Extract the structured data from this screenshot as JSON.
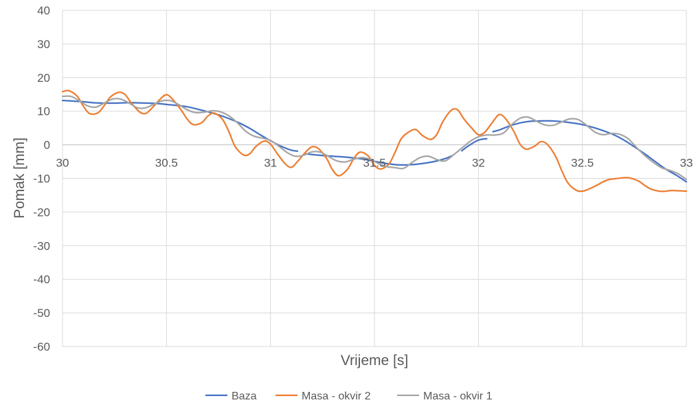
{
  "chart_data": {
    "type": "line",
    "title": "",
    "xlabel": "Vrijeme [s]",
    "ylabel": "Pomak [mm]",
    "xlim": [
      30,
      33
    ],
    "ylim": [
      -60,
      40
    ],
    "x_ticks": [
      30,
      30.5,
      31,
      31.5,
      32,
      32.5,
      33
    ],
    "x_tick_labels": [
      "30",
      "30.5",
      "31",
      "31.5",
      "32",
      "32.5",
      "33"
    ],
    "y_ticks": [
      40,
      30,
      20,
      10,
      0,
      -10,
      -20,
      -30,
      -40,
      -50,
      -60
    ],
    "y_tick_labels": [
      "40",
      "30",
      "20",
      "10",
      "0",
      "-10",
      "-20",
      "-30",
      "-40",
      "-50",
      "-60"
    ],
    "grid": true,
    "legend_position": "bottom",
    "series": [
      {
        "name": "Baza",
        "color": "#4472C4",
        "segments": [
          {
            "x": [
              30.0,
              30.05,
              30.1,
              30.15,
              30.2,
              30.25,
              30.3,
              30.35,
              30.4,
              30.45,
              30.5,
              30.55,
              30.6,
              30.65,
              30.7,
              30.75,
              30.8,
              30.85,
              30.9,
              30.95,
              31.0,
              31.05,
              31.1,
              31.13
            ],
            "y": [
              13.2,
              13.0,
              12.8,
              12.5,
              12.4,
              12.4,
              12.5,
              12.5,
              12.4,
              12.3,
              12.0,
              11.7,
              11.3,
              10.6,
              9.8,
              8.9,
              7.8,
              6.5,
              4.9,
              3.0,
              1.2,
              -0.4,
              -1.6,
              -1.9
            ]
          },
          {
            "x": [
              31.17,
              31.2,
              31.25,
              31.3,
              31.35,
              31.4,
              31.45,
              31.5,
              31.55,
              31.6,
              31.65,
              31.7,
              31.75,
              31.8,
              31.85,
              31.87
            ],
            "y": [
              -2.7,
              -2.9,
              -3.2,
              -3.4,
              -3.6,
              -3.9,
              -4.3,
              -4.9,
              -5.5,
              -5.9,
              -6.0,
              -5.8,
              -5.4,
              -4.8,
              -3.9,
              -3.3
            ]
          },
          {
            "x": [
              31.92,
              31.95,
              32.0,
              32.04
            ],
            "y": [
              -1.8,
              -0.4,
              1.4,
              1.8
            ]
          },
          {
            "x": [
              32.07,
              32.1,
              32.15,
              32.2,
              32.25,
              32.3,
              32.35,
              32.4,
              32.45,
              32.5,
              32.55,
              32.6,
              32.65,
              32.7,
              32.75,
              32.8,
              32.85,
              32.9,
              32.95,
              33.0
            ],
            "y": [
              3.9,
              4.4,
              5.6,
              6.5,
              7.0,
              7.1,
              7.1,
              6.9,
              6.5,
              6.0,
              5.2,
              4.2,
              3.0,
              1.4,
              -0.6,
              -2.7,
              -5.0,
              -7.2,
              -9.0,
              -11.0
            ]
          }
        ]
      },
      {
        "name": "Masa - okvir 2",
        "color": "#ED7D31",
        "segments": [
          {
            "x": [
              30.0,
              30.03,
              30.07,
              30.1,
              30.13,
              30.17,
              30.2,
              30.23,
              30.27,
              30.3,
              30.33,
              30.37,
              30.4,
              30.43,
              30.47,
              30.5,
              30.53,
              30.57,
              30.6,
              30.63,
              30.67,
              30.7,
              30.73,
              30.77,
              30.8,
              30.83,
              30.87,
              30.9,
              30.93,
              30.97,
              31.0,
              31.03,
              31.07,
              31.1,
              31.13,
              31.17,
              31.2,
              31.23,
              31.27,
              31.3,
              31.33,
              31.37,
              31.4,
              31.43,
              31.47,
              31.5,
              31.53,
              31.57,
              31.6,
              31.63,
              31.67,
              31.7,
              31.73,
              31.77,
              31.8,
              31.83,
              31.87,
              31.9,
              31.93,
              31.97,
              32.0,
              32.03,
              32.07,
              32.1,
              32.13,
              32.17,
              32.2,
              32.23,
              32.27,
              32.3,
              32.33,
              32.37,
              32.4,
              32.43,
              32.47,
              32.5,
              32.53,
              32.57,
              32.6,
              32.63,
              32.67,
              32.7,
              32.73,
              32.77,
              32.8,
              32.83,
              32.87,
              32.9,
              32.93,
              32.97,
              33.0
            ],
            "y": [
              15.8,
              16.1,
              14.5,
              11.5,
              9.3,
              9.5,
              11.6,
              14.2,
              15.6,
              15.0,
              12.5,
              9.8,
              9.3,
              10.9,
              13.6,
              14.9,
              13.5,
              10.4,
              7.6,
              6.0,
              6.6,
              8.6,
              9.4,
              7.5,
              3.9,
              -0.5,
              -3.0,
              -2.7,
              -0.5,
              1.1,
              0.2,
              -2.4,
              -5.6,
              -6.7,
              -5.0,
              -2.1,
              -0.6,
              -1.1,
              -4.1,
              -7.6,
              -9.2,
              -7.3,
              -4.2,
              -2.2,
              -3.3,
              -6.1,
              -7.2,
              -5.7,
              -2.1,
              1.9,
              4.0,
              4.5,
              2.8,
              1.6,
              3.1,
              7.0,
              10.3,
              10.4,
              7.7,
              4.8,
              3.0,
              3.7,
              6.9,
              9.0,
              7.8,
              4.0,
              0.2,
              -1.3,
              -0.4,
              0.9,
              0.2,
              -3.3,
              -7.6,
              -11.3,
              -13.5,
              -13.8,
              -13.2,
              -12.0,
              -11.0,
              -10.3,
              -10.0,
              -9.8,
              -9.9,
              -10.8,
              -12.1,
              -13.2,
              -13.8,
              -13.8,
              -13.6,
              -13.7,
              -13.8
            ]
          }
        ]
      },
      {
        "name": "Masa - okvir 1",
        "color": "#A5A5A5",
        "segments": [
          {
            "x": [
              30.0,
              30.04,
              30.08,
              30.12,
              30.16,
              30.2,
              30.24,
              30.28,
              30.32,
              30.36,
              30.4,
              30.44,
              30.48,
              30.52,
              30.56,
              30.6,
              30.64,
              30.68,
              30.72,
              30.76,
              30.8,
              30.84,
              30.88,
              30.92,
              30.96,
              31.0,
              31.04,
              31.08,
              31.12,
              31.16,
              31.2,
              31.24,
              31.28,
              31.32,
              31.36,
              31.4,
              31.44,
              31.48,
              31.52,
              31.56,
              31.6,
              31.64,
              31.68,
              31.72,
              31.76,
              31.8,
              31.84,
              31.88,
              31.92,
              31.96,
              32.0,
              32.04,
              32.08,
              32.12,
              32.16,
              32.2,
              32.24,
              32.28,
              32.32,
              32.36,
              32.4,
              32.44,
              32.48,
              32.52,
              32.56,
              32.6,
              32.64,
              32.68,
              32.72,
              32.76,
              32.8,
              32.84,
              32.88,
              32.92,
              32.96,
              33.0
            ],
            "y": [
              14.4,
              14.4,
              13.1,
              11.6,
              11.2,
              12.4,
              13.6,
              13.6,
              12.4,
              11.0,
              11.0,
              12.1,
              13.1,
              13.1,
              11.9,
              10.4,
              9.6,
              9.7,
              10.1,
              9.8,
              8.6,
              6.6,
              4.1,
              2.6,
              2.0,
              1.3,
              -0.4,
              -2.3,
              -3.4,
              -3.1,
              -2.1,
              -2.2,
              -3.5,
              -4.8,
              -5.1,
              -4.3,
              -3.8,
              -4.3,
              -5.6,
              -6.5,
              -6.8,
              -7.0,
              -5.3,
              -3.8,
              -3.4,
              -4.4,
              -4.8,
              -3.0,
              -1.0,
              1.0,
              2.4,
              2.9,
              2.9,
              3.5,
              6.0,
              7.9,
              8.2,
              7.0,
              5.9,
              5.8,
              6.8,
              7.7,
              7.5,
              5.8,
              3.8,
              3.0,
              3.4,
              3.1,
              1.8,
              -0.8,
              -3.2,
              -5.2,
              -6.8,
              -7.6,
              -8.6,
              -10.3
            ]
          }
        ]
      }
    ]
  }
}
